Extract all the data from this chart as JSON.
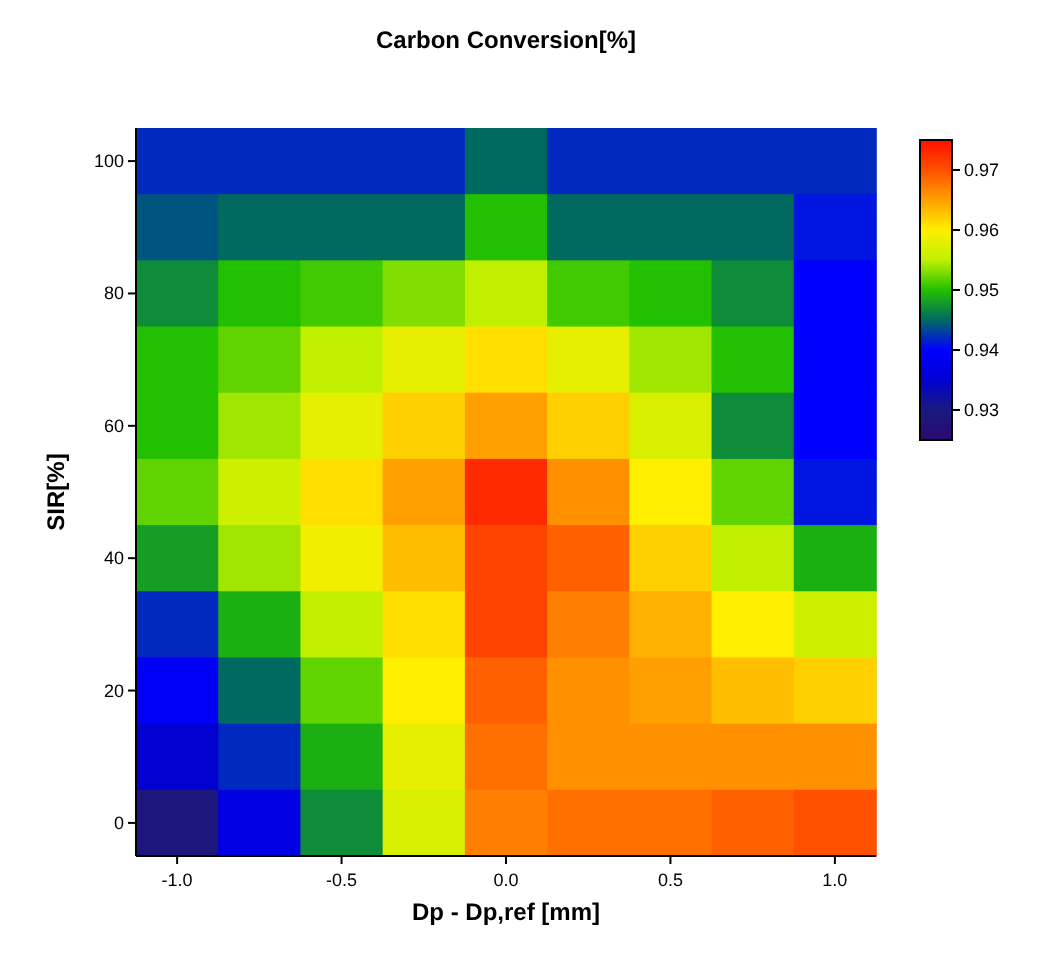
{
  "chart_data": {
    "type": "heatmap",
    "title": "Carbon Conversion[%]",
    "xlabel": "Dp - Dp,ref [mm]",
    "ylabel": "SIR[%]",
    "categories": [
      "-1.0",
      null,
      "-0.5",
      null,
      "0.0",
      null,
      "0.5",
      null,
      "1.0"
    ],
    "y_categories": [
      "100",
      null,
      "80",
      null,
      "60",
      null,
      "40",
      null,
      "20",
      null,
      "0"
    ],
    "cells": [
      [
        0.942,
        0.942,
        0.942,
        0.942,
        0.945,
        0.942,
        0.942,
        0.942,
        0.942
      ],
      [
        0.944,
        0.945,
        0.945,
        0.945,
        0.95,
        0.945,
        0.945,
        0.945,
        0.941
      ],
      [
        0.947,
        0.95,
        0.951,
        0.953,
        0.955,
        0.951,
        0.95,
        0.947,
        0.94
      ],
      [
        0.95,
        0.952,
        0.955,
        0.958,
        0.961,
        0.958,
        0.954,
        0.95,
        0.94
      ],
      [
        0.95,
        0.954,
        0.958,
        0.962,
        0.965,
        0.962,
        0.957,
        0.947,
        0.94
      ],
      [
        0.952,
        0.956,
        0.961,
        0.965,
        0.973,
        0.966,
        0.96,
        0.952,
        0.941
      ],
      [
        0.948,
        0.954,
        0.959,
        0.963,
        0.971,
        0.969,
        0.962,
        0.955,
        0.949
      ],
      [
        0.942,
        0.949,
        0.955,
        0.961,
        0.971,
        0.967,
        0.964,
        0.96,
        0.956
      ],
      [
        0.939,
        0.945,
        0.952,
        0.96,
        0.969,
        0.966,
        0.965,
        0.963,
        0.962
      ],
      [
        0.935,
        0.942,
        0.949,
        0.958,
        0.968,
        0.966,
        0.966,
        0.966,
        0.966
      ],
      [
        0.929,
        0.937,
        0.947,
        0.957,
        0.967,
        0.968,
        0.968,
        0.969,
        0.97
      ]
    ],
    "clim": [
      0.925,
      0.975
    ],
    "cticks": [
      0.93,
      0.94,
      0.95,
      0.96,
      0.97
    ],
    "colors": [
      "#2a0a70",
      "#1a1a80",
      "#0000d0",
      "#0000ff",
      "#006a60",
      "#22c000",
      "#c0f000",
      "#ffee00",
      "#ffa000",
      "#ff5000",
      "#ff1000"
    ]
  }
}
